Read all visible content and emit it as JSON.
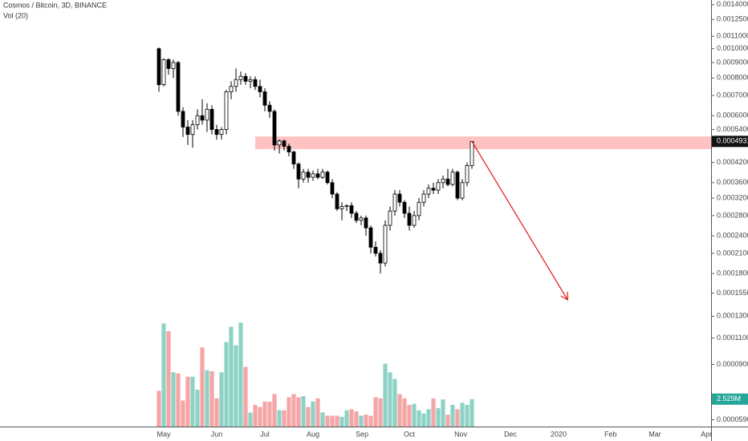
{
  "chart_data": {
    "type": "candlestick",
    "title": "Cosmos / Bitcoin, 3D, BINANCE",
    "subtitle": "Vol (20)",
    "log": true,
    "ylim": [
      5.5e-05,
      0.00145
    ],
    "yticks": [
      {
        "value": 0.0014,
        "label": "0.0014000"
      },
      {
        "value": 0.00125,
        "label": "0.0012500"
      },
      {
        "value": 0.0011,
        "label": "0.0011000"
      },
      {
        "value": 0.001,
        "label": "0.0010000"
      },
      {
        "value": 0.0009,
        "label": "0.0009000"
      },
      {
        "value": 0.0008,
        "label": "0.0008000"
      },
      {
        "value": 0.0007,
        "label": "0.0007000"
      },
      {
        "value": 0.0006,
        "label": "0.0006000"
      },
      {
        "value": 0.00054,
        "label": "0.0005400"
      },
      {
        "value": 0.00042,
        "label": "0.0004200"
      },
      {
        "value": 0.00036,
        "label": "0.0003600"
      },
      {
        "value": 0.00032,
        "label": "0.0003200"
      },
      {
        "value": 0.00028,
        "label": "0.0002800"
      },
      {
        "value": 0.00024,
        "label": "0.0002400"
      },
      {
        "value": 0.00021,
        "label": "0.0002100"
      },
      {
        "value": 0.00018,
        "label": "0.0001800"
      },
      {
        "value": 0.000155,
        "label": "0.0001550"
      },
      {
        "value": 0.00013,
        "label": "0.0001300"
      },
      {
        "value": 0.00011,
        "label": "0.0001100"
      },
      {
        "value": 9e-05,
        "label": "0.0000900"
      },
      {
        "value": 5.9e-05,
        "label": "0.0000590"
      }
    ],
    "xlim": [
      -33,
      114.67
    ],
    "xticks": [
      {
        "value": 1,
        "label": "May"
      },
      {
        "value": 12,
        "label": "Jun"
      },
      {
        "value": 22,
        "label": "Jul"
      },
      {
        "value": 32,
        "label": "Aug"
      },
      {
        "value": 42.2,
        "label": "Sep"
      },
      {
        "value": 52,
        "label": "Oct"
      },
      {
        "value": 62.7,
        "label": "Nov"
      },
      {
        "value": 73,
        "label": "Dec"
      },
      {
        "value": 83,
        "label": "2020"
      },
      {
        "value": 93.8,
        "label": "Feb"
      },
      {
        "value": 103,
        "label": "Mar"
      },
      {
        "value": 113.7,
        "label": "Apr"
      }
    ],
    "open": [
      0.001,
      0.00076,
      0.00092,
      0.00086,
      0.0009,
      0.00062,
      0.00055,
      0.00052,
      0.00056,
      0.0006,
      0.00058,
      0.00063,
      0.00054,
      0.00052,
      0.00054,
      0.00072,
      0.00075,
      0.00079,
      0.00081,
      0.00078,
      0.00079,
      0.00075,
      0.00072,
      0.00065,
      0.00062,
      0.00048,
      0.000495,
      0.000475,
      0.000455,
      0.000415,
      0.00037,
      0.00039,
      0.000375,
      0.000385,
      0.000375,
      0.00039,
      0.00036,
      0.00033,
      0.000295,
      0.0003,
      0.000302,
      0.000285,
      0.00027,
      0.000275,
      0.000255,
      0.00022,
      0.00021,
      0.000195,
      0.00026,
      0.00029,
      0.00033,
      0.00031,
      0.000285,
      0.00026,
      0.00028,
      0.00031,
      0.00033,
      0.000345,
      0.00034,
      0.00036,
      0.00037,
      0.000355,
      0.00039,
      0.00032,
      0.00036,
      0.00041
    ],
    "high": [
      0.00101,
      0.00093,
      0.00093,
      0.00092,
      0.00091,
      0.00064,
      0.00058,
      0.00058,
      0.00063,
      0.00068,
      0.00066,
      0.00065,
      0.00056,
      0.00055,
      0.00073,
      0.00078,
      0.00086,
      0.00084,
      0.00083,
      0.00081,
      0.00081,
      0.00079,
      0.00074,
      0.00067,
      0.00063,
      0.0005,
      0.0005,
      0.000485,
      0.00046,
      0.00042,
      0.0004,
      0.0004,
      0.000395,
      0.0004,
      0.0004,
      0.000395,
      0.00037,
      0.000335,
      0.00031,
      0.000305,
      0.00031,
      0.00029,
      0.00028,
      0.00028,
      0.00026,
      0.00023,
      0.000215,
      0.00027,
      0.0003,
      0.00034,
      0.00034,
      0.000315,
      0.0003,
      0.00029,
      0.00032,
      0.00034,
      0.000355,
      0.00036,
      0.00037,
      0.00038,
      0.0004,
      0.0004,
      0.000395,
      0.00037,
      0.00042,
      0.0004931
    ],
    "low": [
      0.00072,
      0.00075,
      0.00082,
      0.0008,
      0.0006,
      0.00051,
      0.00048,
      0.00047,
      0.00054,
      0.00056,
      0.00053,
      0.00052,
      0.0005,
      0.0005,
      0.00052,
      0.00068,
      0.00072,
      0.00076,
      0.00076,
      0.00074,
      0.00073,
      0.00069,
      0.00062,
      0.00059,
      0.00046,
      0.00045,
      0.00046,
      0.00044,
      0.0004,
      0.000345,
      0.00036,
      0.00036,
      0.000365,
      0.00037,
      0.00037,
      0.000355,
      0.00032,
      0.00029,
      0.00027,
      0.00029,
      0.000275,
      0.000265,
      0.00026,
      0.00024,
      0.00021,
      0.000205,
      0.00018,
      0.00019,
      0.00025,
      0.00028,
      0.0003,
      0.000275,
      0.00025,
      0.000255,
      0.00027,
      0.0003,
      0.00032,
      0.00033,
      0.00033,
      0.000345,
      0.00035,
      0.00035,
      0.000315,
      0.000315,
      0.00035,
      0.0004
    ],
    "close": [
      0.00076,
      0.00092,
      0.00086,
      0.0009,
      0.00062,
      0.00055,
      0.00052,
      0.00056,
      0.0006,
      0.00058,
      0.00063,
      0.00054,
      0.00052,
      0.00054,
      0.00072,
      0.00075,
      0.00079,
      0.00081,
      0.00078,
      0.00079,
      0.00075,
      0.00072,
      0.00065,
      0.00062,
      0.00048,
      0.000495,
      0.000475,
      0.000455,
      0.000415,
      0.00037,
      0.00039,
      0.000375,
      0.000385,
      0.000375,
      0.00039,
      0.00036,
      0.00033,
      0.000295,
      0.0003,
      0.000302,
      0.000285,
      0.00027,
      0.000275,
      0.000255,
      0.00022,
      0.00021,
      0.000195,
      0.00026,
      0.00029,
      0.00033,
      0.00031,
      0.000285,
      0.00026,
      0.00028,
      0.00031,
      0.00033,
      0.000345,
      0.00034,
      0.00036,
      0.00037,
      0.000355,
      0.00039,
      0.00032,
      0.00036,
      0.00041,
      0.0004931
    ],
    "volume": [
      3.3,
      9.5,
      8.8,
      5.0,
      4.9,
      2.4,
      4.6,
      4.6,
      3.4,
      7.3,
      5.2,
      5.1,
      2.6,
      5.0,
      7.8,
      9.2,
      7.5,
      9.6,
      5.5,
      1.3,
      2.0,
      1.8,
      2.3,
      2.3,
      3.0,
      1.5,
      1.5,
      2.7,
      3.0,
      2.7,
      2.8,
      1.8,
      2.3,
      2.6,
      1.3,
      1.0,
      1.0,
      1.0,
      0.9,
      1.5,
      1.6,
      1.4,
      1.0,
      1.1,
      1.0,
      2.7,
      2.6,
      5.8,
      5.0,
      4.4,
      3.0,
      2.6,
      2.0,
      2.1,
      1.5,
      1.2,
      1.6,
      2.6,
      1.7,
      2.5,
      1.1,
      2.0,
      1.6,
      2.2,
      2.0,
      2.529
    ],
    "y2lim": [
      0,
      10.5
    ],
    "up_color": "#ffffff",
    "down_color": "#000000",
    "volume_up_color": "#8dd3c5",
    "volume_down_color": "#f5a5a5",
    "last_price": {
      "value": 0.0004931,
      "label": "0.0004931"
    },
    "last_volume": {
      "value": 2.529,
      "label": "2.529M"
    },
    "zone": {
      "from": 0.000465,
      "to": 0.000512,
      "start": 20,
      "color": "#ffc2c2"
    },
    "arrow": {
      "x": [
        65,
        84.8
      ],
      "y": [
        0.0004931,
        0.000148
      ],
      "color": "#e01515"
    }
  }
}
